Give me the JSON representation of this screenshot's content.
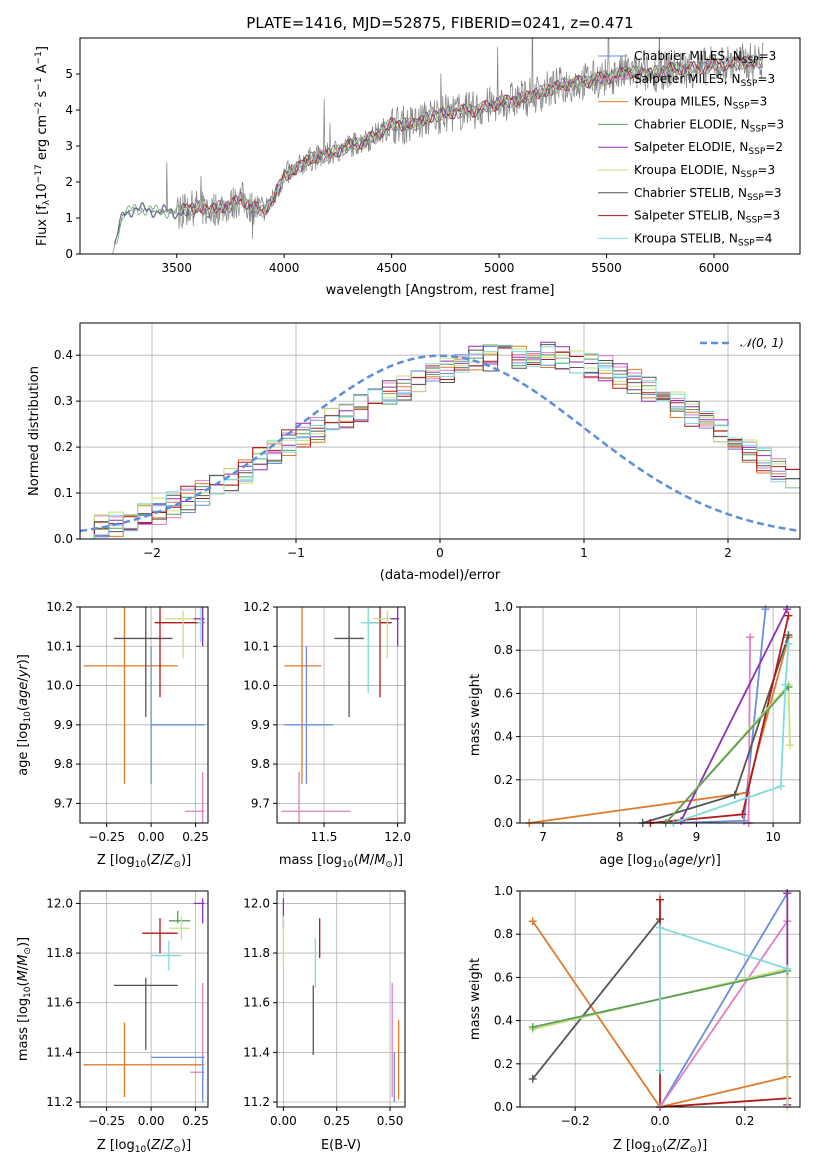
{
  "colors": {
    "chabrier_miles": "#6a8fdd",
    "salpeter_miles": "#e27fbf",
    "kroupa_miles": "#e07b2c",
    "chabrier_elodie": "#5a9e5a",
    "salpeter_elodie": "#8e2fb8",
    "kroupa_elodie": "#c6e27a",
    "chabrier_stelib": "#555555",
    "salpeter_stelib": "#b01a1a",
    "kroupa_stelib": "#80dcdc",
    "spectrum": "#808080",
    "normal": "#5b8fd9"
  },
  "chart_data": [
    {
      "id": "spectrum",
      "type": "line",
      "title": "PLATE=1416, MJD=52875, FIBERID=0241, z=0.471",
      "xlabel": "wavelength [Angstrom, rest frame]",
      "ylabel": "Flux [f_λ 10^-17 erg cm^-2 s^-1 A^-1]",
      "xlim": [
        3050,
        6400
      ],
      "ylim": [
        0,
        6
      ],
      "xticks": [
        "3500",
        "4000",
        "4500",
        "5000",
        "5500",
        "6000"
      ],
      "yticks": [
        "0",
        "1",
        "2",
        "3",
        "4",
        "5"
      ],
      "grid": false,
      "legend_placement": "top-right",
      "data_continuum": {
        "x": [
          3200,
          3250,
          3300,
          3400,
          3500,
          3550,
          3600,
          3650,
          3700,
          3750,
          3800,
          3850,
          3900,
          3950,
          4000,
          4050,
          4100,
          4200,
          4300,
          4400,
          4500,
          4600,
          4700,
          4800,
          4900,
          5000,
          5100,
          5200,
          5300,
          5400,
          5500,
          5600,
          5700,
          5800,
          5900,
          6000,
          6100,
          6200
        ],
        "y": [
          0.0,
          1.1,
          1.25,
          1.2,
          1.15,
          1.25,
          1.3,
          1.2,
          1.3,
          1.35,
          1.55,
          1.3,
          1.2,
          1.5,
          2.2,
          2.3,
          2.6,
          2.75,
          3.0,
          3.2,
          3.6,
          3.6,
          3.85,
          3.95,
          4.0,
          4.2,
          4.3,
          4.5,
          4.7,
          4.8,
          4.9,
          5.05,
          5.0,
          5.15,
          5.15,
          5.25,
          5.3,
          5.35
        ]
      },
      "series": [
        {
          "name": "Chabrier MILES, N_SSP=3"
        },
        {
          "name": "Salpeter MILES, N_SSP=3"
        },
        {
          "name": "Kroupa MILES, N_SSP=3"
        },
        {
          "name": "Chabrier ELODIE, N_SSP=3"
        },
        {
          "name": "Salpeter ELODIE, N_SSP=2"
        },
        {
          "name": "Kroupa ELODIE, N_SSP=3"
        },
        {
          "name": "Chabrier STELIB, N_SSP=3"
        },
        {
          "name": "Salpeter STELIB, N_SSP=3"
        },
        {
          "name": "Kroupa STELIB, N_SSP=4"
        }
      ]
    },
    {
      "id": "residuals",
      "type": "histogram",
      "xlabel": "(data-model)/error",
      "ylabel": "Normed distribution",
      "xlim": [
        -2.5,
        2.5
      ],
      "ylim": [
        0,
        0.47
      ],
      "xticks": [
        "−2",
        "−1",
        "0",
        "1",
        "2"
      ],
      "yticks": [
        "0.0",
        "0.1",
        "0.2",
        "0.3",
        "0.4"
      ],
      "grid": true,
      "legend": [
        "N(0,1)"
      ],
      "legend_placement": "top-right",
      "bin_width": 0.1,
      "mean_hist": [
        0.025,
        0.03,
        0.035,
        0.04,
        0.05,
        0.06,
        0.075,
        0.085,
        0.1,
        0.11,
        0.13,
        0.15,
        0.17,
        0.19,
        0.21,
        0.225,
        0.24,
        0.255,
        0.27,
        0.285,
        0.3,
        0.315,
        0.33,
        0.345,
        0.36,
        0.37,
        0.38,
        0.39,
        0.395,
        0.4,
        0.4,
        0.4,
        0.4,
        0.395,
        0.39,
        0.38,
        0.37,
        0.355,
        0.34,
        0.325,
        0.31,
        0.29,
        0.27,
        0.25,
        0.23,
        0.21,
        0.19,
        0.17,
        0.15,
        0.13,
        0.115,
        0.1,
        0.085,
        0.075,
        0.065,
        0.055,
        0.045,
        0.04,
        0.035,
        0.03
      ]
    },
    {
      "id": "age-vs-Z",
      "type": "errorbar",
      "xlabel": "Z [log10(Z/Z⊙)]",
      "ylabel": "age  [log10(age/yr)]",
      "xlim": [
        -0.4,
        0.32
      ],
      "ylim": [
        9.65,
        10.2
      ],
      "xticks": [
        "−0.25",
        "0.00",
        "0.25"
      ],
      "yticks": [
        "9.7",
        "9.8",
        "9.9",
        "10.0",
        "10.1",
        "10.2"
      ],
      "points": [
        {
          "model": "kroupa_miles",
          "x": -0.15,
          "xerr": [
            0.23,
            0.3
          ],
          "y": 10.05,
          "yerr": [
            0.3,
            0.3
          ]
        },
        {
          "model": "chabrier_stelib",
          "x": -0.03,
          "xerr": [
            0.18,
            0.15
          ],
          "y": 10.12,
          "yerr": [
            0.2,
            0.15
          ]
        },
        {
          "model": "chabrier_miles",
          "x": 0.0,
          "xerr": [
            0.0,
            0.3
          ],
          "y": 9.9,
          "yerr": [
            0.15,
            0.2
          ]
        },
        {
          "model": "salpeter_stelib",
          "x": 0.05,
          "xerr": [
            0.03,
            0.25
          ],
          "y": 10.16,
          "yerr": [
            0.19,
            0.05
          ]
        },
        {
          "model": "kroupa_elodie",
          "x": 0.18,
          "xerr": [
            0.1,
            0.1
          ],
          "y": 10.17,
          "yerr": [
            0.1,
            0.02
          ]
        },
        {
          "model": "salpeter_elodie",
          "x": 0.29,
          "xerr": [
            0.05,
            0.01
          ],
          "y": 10.17,
          "yerr": [
            0.07,
            0.03
          ]
        },
        {
          "model": "salpeter_miles",
          "x": 0.29,
          "xerr": [
            0.1,
            0.01
          ],
          "y": 9.68,
          "yerr": [
            0.05,
            0.1
          ]
        },
        {
          "model": "kroupa_stelib",
          "x": 0.28,
          "xerr": [
            0.02,
            0.01
          ],
          "y": 10.16,
          "yerr": [
            0.05,
            0.05
          ]
        }
      ]
    },
    {
      "id": "age-vs-mass",
      "type": "errorbar",
      "xlabel": "mass [log10(M/M⊙)]",
      "ylabel": "",
      "xlim": [
        11.18,
        12.05
      ],
      "ylim": [
        9.65,
        10.2
      ],
      "xticks": [
        "11.5",
        "12.0"
      ],
      "yticks": [
        "9.7",
        "9.8",
        "9.9",
        "10.0",
        "10.1",
        "10.2"
      ],
      "points": [
        {
          "model": "kroupa_miles",
          "x": 11.35,
          "xerr": [
            0.12,
            0.13
          ],
          "y": 10.05,
          "yerr": [
            0.3,
            0.3
          ]
        },
        {
          "model": "chabrier_stelib",
          "x": 11.67,
          "xerr": [
            0.1,
            0.1
          ],
          "y": 10.12,
          "yerr": [
            0.2,
            0.15
          ]
        },
        {
          "model": "chabrier_miles",
          "x": 11.38,
          "xerr": [
            0.15,
            0.18
          ],
          "y": 9.9,
          "yerr": [
            0.15,
            0.2
          ]
        },
        {
          "model": "salpeter_stelib",
          "x": 11.88,
          "xerr": [
            0.08,
            0.08
          ],
          "y": 10.16,
          "yerr": [
            0.19,
            0.05
          ]
        },
        {
          "model": "kroupa_elodie",
          "x": 11.93,
          "xerr": [
            0.1,
            0.08
          ],
          "y": 10.17,
          "yerr": [
            0.1,
            0.02
          ]
        },
        {
          "model": "salpeter_elodie",
          "x": 12.0,
          "xerr": [
            0.05,
            0.01
          ],
          "y": 10.17,
          "yerr": [
            0.07,
            0.03
          ]
        },
        {
          "model": "salpeter_miles",
          "x": 11.33,
          "xerr": [
            0.12,
            0.35
          ],
          "y": 9.68,
          "yerr": [
            0.05,
            0.1
          ]
        },
        {
          "model": "kroupa_stelib",
          "x": 11.8,
          "xerr": [
            0.05,
            0.08
          ],
          "y": 10.16,
          "yerr": [
            0.18,
            0.05
          ]
        }
      ]
    },
    {
      "id": "massweight-vs-age",
      "type": "line",
      "xlabel": "age  [log10(age/yr)]",
      "ylabel": "mass weight",
      "xlim": [
        6.7,
        10.35
      ],
      "ylim": [
        0,
        1.0
      ],
      "xticks": [
        "7",
        "8",
        "9",
        "10"
      ],
      "yticks": [
        "0.0",
        "0.2",
        "0.4",
        "0.6",
        "0.8",
        "1.0"
      ],
      "series": [
        {
          "model": "kroupa_miles",
          "x": [
            6.82,
            9.65,
            10.2
          ],
          "y": [
            0.0,
            0.14,
            0.86
          ]
        },
        {
          "model": "chabrier_miles",
          "x": [
            8.7,
            9.62,
            9.9
          ],
          "y": [
            0.0,
            0.01,
            0.99
          ]
        },
        {
          "model": "salpeter_miles",
          "x": [
            9.68,
            9.68,
            9.7
          ],
          "y": [
            0.0,
            0.0,
            0.86
          ]
        },
        {
          "model": "salpeter_elodie",
          "x": [
            8.8,
            10.18
          ],
          "y": [
            0.01,
            0.99
          ]
        },
        {
          "model": "chabrier_stelib",
          "x": [
            8.3,
            9.5,
            10.2
          ],
          "y": [
            0.0,
            0.13,
            0.87
          ]
        },
        {
          "model": "salpeter_stelib",
          "x": [
            8.4,
            9.6,
            10.2
          ],
          "y": [
            0.0,
            0.04,
            0.96
          ]
        },
        {
          "model": "kroupa_elodie",
          "x": [
            8.6,
            10.2,
            10.22
          ],
          "y": [
            0.0,
            0.64,
            0.36
          ]
        },
        {
          "model": "chabrier_elodie",
          "x": [
            8.6,
            10.2
          ],
          "y": [
            0.0,
            0.63
          ]
        },
        {
          "model": "kroupa_stelib",
          "x": [
            8.7,
            10.1,
            10.16,
            10.2
          ],
          "y": [
            0.0,
            0.17,
            0.64,
            0.83
          ]
        }
      ]
    },
    {
      "id": "mass-vs-Z",
      "type": "errorbar",
      "xlabel": "Z [log10(Z/Z⊙)]",
      "ylabel": "mass [log10(M/M⊙)]",
      "xlim": [
        -0.4,
        0.32
      ],
      "ylim": [
        11.18,
        12.05
      ],
      "xticks": [
        "−0.25",
        "0.00",
        "0.25"
      ],
      "yticks": [
        "11.2",
        "11.4",
        "11.6",
        "11.8",
        "12.0"
      ],
      "points": [
        {
          "model": "kroupa_miles",
          "x": -0.15,
          "xerr": [
            0.23,
            0.45
          ],
          "y": 11.35,
          "yerr": [
            0.13,
            0.17
          ]
        },
        {
          "model": "chabrier_stelib",
          "x": -0.03,
          "xerr": [
            0.18,
            0.18
          ],
          "y": 11.67,
          "yerr": [
            0.26,
            0.03
          ]
        },
        {
          "model": "chabrier_miles",
          "x": 0.0,
          "xerr": [
            0.0,
            0.3
          ],
          "y": 11.38,
          "yerr": [
            0.0,
            0.0
          ]
        },
        {
          "model": "salpeter_stelib",
          "x": 0.05,
          "xerr": [
            0.1,
            0.1
          ],
          "y": 11.88,
          "yerr": [
            0.08,
            0.06
          ]
        },
        {
          "model": "chabrier_elodie",
          "x": 0.15,
          "xerr": [
            0.05,
            0.07
          ],
          "y": 11.93,
          "yerr": [
            0.01,
            0.04
          ]
        },
        {
          "model": "kroupa_elodie",
          "x": 0.17,
          "xerr": [
            0.07,
            0.05
          ],
          "y": 11.9,
          "yerr": [
            0.05,
            0.05
          ]
        },
        {
          "model": "kroupa_stelib",
          "x": 0.1,
          "xerr": [
            0.1,
            0.07
          ],
          "y": 11.79,
          "yerr": [
            0.06,
            0.06
          ]
        },
        {
          "model": "salpeter_elodie",
          "x": 0.29,
          "xerr": [
            0.05,
            0.01
          ],
          "y": 12.0,
          "yerr": [
            0.08,
            0.02
          ]
        },
        {
          "model": "salpeter_miles",
          "x": 0.29,
          "xerr": [
            0.07,
            0.01
          ],
          "y": 11.32,
          "yerr": [
            0.1,
            0.36
          ]
        },
        {
          "model": "chabrier_miles_v",
          "x": 0.29,
          "xerr": [
            0.01,
            0.01
          ],
          "y": 11.38,
          "yerr": [
            0.18,
            0.0
          ]
        }
      ]
    },
    {
      "id": "mass-vs-EBV",
      "type": "errorbar",
      "xlabel": "E(B-V)",
      "ylabel": "",
      "xlim": [
        -0.03,
        0.57
      ],
      "ylim": [
        11.18,
        12.05
      ],
      "xticks": [
        "0.00",
        "0.25",
        "0.50"
      ],
      "yticks": [
        "11.2",
        "11.4",
        "11.6",
        "11.8",
        "12.0"
      ],
      "points": [
        {
          "model": "salpeter_elodie",
          "x": 0.0,
          "y": 11.96,
          "yerr": [
            0.06,
            0.06
          ]
        },
        {
          "model": "kroupa_elodie",
          "x": 0.0,
          "y": 11.85,
          "yerr": [
            0.1,
            0.1
          ]
        },
        {
          "model": "chabrier_stelib",
          "x": 0.14,
          "y": 11.53,
          "yerr": [
            0.14,
            0.14
          ]
        },
        {
          "model": "kroupa_stelib",
          "x": 0.15,
          "y": 11.76,
          "yerr": [
            0.1,
            0.1
          ]
        },
        {
          "model": "salpeter_stelib",
          "x": 0.17,
          "y": 11.86,
          "yerr": [
            0.08,
            0.08
          ]
        },
        {
          "model": "salpeter_miles",
          "x": 0.51,
          "y": 11.45,
          "yerr": [
            0.23,
            0.23
          ]
        },
        {
          "model": "chabrier_miles",
          "x": 0.52,
          "y": 11.3,
          "yerr": [
            0.1,
            0.1
          ]
        },
        {
          "model": "kroupa_miles",
          "x": 0.54,
          "y": 11.37,
          "yerr": [
            0.16,
            0.16
          ]
        }
      ]
    },
    {
      "id": "massweight-vs-Z",
      "type": "line",
      "xlabel": "Z [log10(Z/Z⊙)]",
      "ylabel": "mass weight",
      "xlim": [
        -0.33,
        0.33
      ],
      "ylim": [
        0,
        1.0
      ],
      "xticks": [
        "−0.2",
        "0.0",
        "0.2"
      ],
      "yticks": [
        "0.0",
        "0.2",
        "0.4",
        "0.6",
        "0.8",
        "1.0"
      ],
      "series": [
        {
          "model": "kroupa_miles",
          "x": [
            -0.3,
            0.0,
            0.3
          ],
          "y": [
            0.86,
            0.0,
            0.14
          ]
        },
        {
          "model": "chabrier_stelib",
          "x": [
            -0.3,
            0.0
          ],
          "y": [
            0.13,
            0.87
          ]
        },
        {
          "model": "salpeter_stelib",
          "x": [
            0.0,
            0.0,
            0.3
          ],
          "y": [
            0.96,
            0.0,
            0.04
          ]
        },
        {
          "model": "chabrier_miles",
          "x": [
            0.0,
            0.3
          ],
          "y": [
            0.0,
            0.99
          ]
        },
        {
          "model": "salpeter_miles",
          "x": [
            0.0,
            0.3
          ],
          "y": [
            0.0,
            0.86
          ]
        },
        {
          "model": "salpeter_elodie",
          "x": [
            0.3,
            0.3
          ],
          "y": [
            0.99,
            0.01
          ]
        },
        {
          "model": "kroupa_elodie",
          "x": [
            -0.3,
            0.3,
            0.3
          ],
          "y": [
            0.36,
            0.64,
            0.0
          ]
        },
        {
          "model": "chabrier_elodie",
          "x": [
            -0.3,
            0.3
          ],
          "y": [
            0.37,
            0.63
          ]
        },
        {
          "model": "kroupa_stelib",
          "x": [
            0.0,
            0.0,
            0.3
          ],
          "y": [
            0.17,
            0.83,
            0.64
          ]
        }
      ]
    }
  ]
}
